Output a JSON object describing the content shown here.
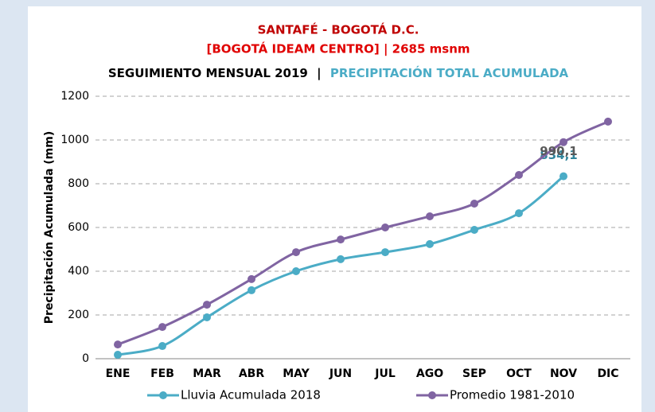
{
  "chart_data": {
    "type": "line",
    "title": "SANTAFÉ - BOGOTÁ D.C.",
    "subtitle": "[BOGOTÁ IDEAM CENTRO] | 2685 msnm",
    "heading": [
      "SEGUIMIENTO MENSUAL 2019",
      "|",
      "PRECIPITACIÓN TOTAL ACUMULADA"
    ],
    "y_label": "Precipitación Acumulada (mm)",
    "categories": [
      "ENE",
      "FEB",
      "MAR",
      "ABR",
      "MAY",
      "JUN",
      "JUL",
      "AGO",
      "SEP",
      "OCT",
      "NOV",
      "DIC"
    ],
    "series": [
      {
        "name": "Lluvia Acumulada 2018",
        "color": "#4bacc6",
        "label_color": "#31859c",
        "values": [
          18,
          58,
          189,
          313,
          400,
          455,
          487,
          524,
          589,
          665,
          834.1,
          null
        ],
        "value_labels": [
          null,
          null,
          null,
          null,
          null,
          null,
          null,
          null,
          null,
          null,
          "834,1",
          null
        ]
      },
      {
        "name": "Promedio 1981-2010",
        "color": "#8064a2",
        "label_color": "#595959",
        "values": [
          65,
          145,
          247,
          364,
          487,
          545,
          600,
          651,
          709,
          840,
          990.1,
          1084
        ],
        "value_labels": [
          null,
          null,
          null,
          null,
          null,
          null,
          null,
          null,
          null,
          null,
          "990,1",
          null
        ]
      }
    ],
    "ylim": [
      0,
      1200
    ],
    "yticks": [
      0,
      200,
      400,
      600,
      800,
      1000,
      1200
    ],
    "grid": true,
    "legend": "bottom"
  }
}
